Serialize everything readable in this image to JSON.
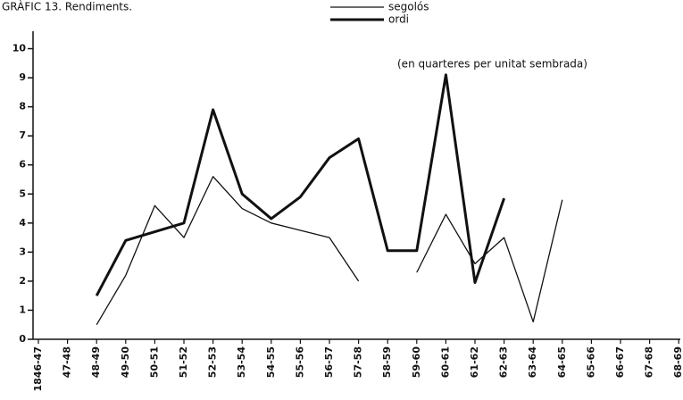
{
  "chart_data": {
    "type": "line",
    "title": "GRÀFIC 13. Rendiments.",
    "annotation": "(en quarteres per unitat sembrada)",
    "categories": [
      "1846-47",
      "47-48",
      "48-49",
      "49-50",
      "50-51",
      "51-52",
      "52-53",
      "53-54",
      "54-55",
      "55-56",
      "56-57",
      "57-58",
      "58-59",
      "59-60",
      "60-61",
      "61-62",
      "62-63",
      "63-64",
      "64-65",
      "65-66",
      "66-67",
      "67-68",
      "68-69"
    ],
    "series": [
      {
        "name": "segolós",
        "color": "#111111",
        "width": 1.3,
        "values": [
          null,
          null,
          0.5,
          2.2,
          4.6,
          3.5,
          5.6,
          4.5,
          4.0,
          3.75,
          3.5,
          2.0,
          null,
          2.3,
          4.3,
          2.6,
          3.5,
          0.6,
          4.8,
          null,
          null,
          null,
          null
        ]
      },
      {
        "name": "ordi",
        "color": "#111111",
        "width": 3,
        "values": [
          null,
          null,
          1.5,
          3.4,
          3.7,
          4.0,
          7.9,
          5.0,
          4.15,
          4.9,
          6.25,
          6.9,
          3.05,
          3.05,
          9.1,
          1.95,
          4.85,
          null,
          null,
          null,
          null,
          null,
          null
        ]
      }
    ],
    "ylim": [
      0,
      10.6
    ],
    "yticks": [
      0,
      1,
      2,
      3,
      4,
      5,
      6,
      7,
      8,
      9,
      10
    ]
  }
}
